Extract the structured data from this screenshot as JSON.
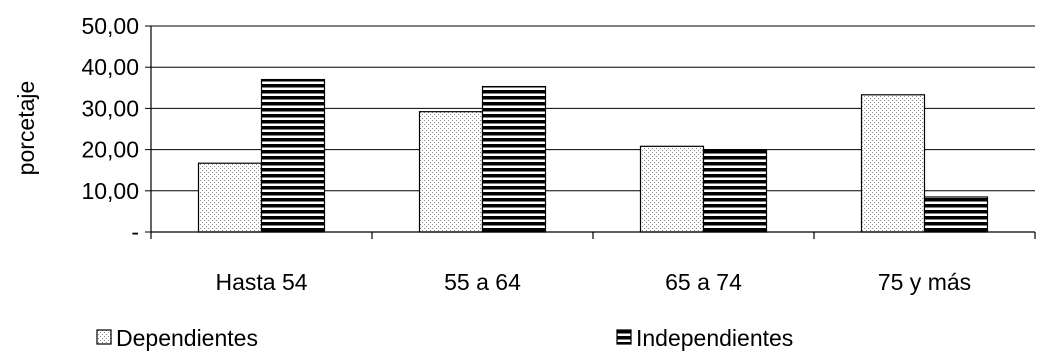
{
  "chart_data": {
    "type": "bar",
    "title": "",
    "xlabel": "",
    "ylabel": "porcetaje",
    "ylim": [
      0,
      50
    ],
    "yticks": [
      0,
      10,
      20,
      30,
      40,
      50
    ],
    "ytick_labels": [
      "-",
      "10,00",
      "20,00",
      "30,00",
      "40,00",
      "50,00"
    ],
    "grid": true,
    "legend": "bottom",
    "categories": [
      "Hasta 54",
      "55 a 64",
      "65 a 74",
      "75 y más"
    ],
    "series": [
      {
        "name": "Dependientes",
        "values": [
          16.7,
          29.2,
          20.8,
          33.3
        ],
        "pattern": "dotted",
        "color": "#e8e8e8"
      },
      {
        "name": "Independientes",
        "values": [
          37.0,
          35.3,
          20.0,
          8.5
        ],
        "pattern": "horizontal-stripes",
        "color": "#000000"
      }
    ]
  }
}
